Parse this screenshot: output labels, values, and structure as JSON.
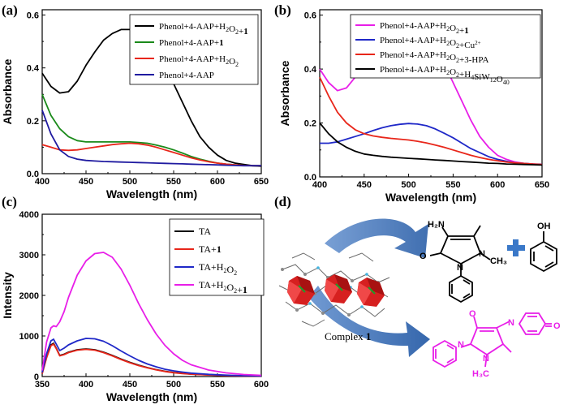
{
  "chart_data": [
    {
      "panel": "(a)",
      "type": "line",
      "xlabel": "Wavelength (nm)",
      "ylabel": "Absorbance",
      "xlim": [
        400,
        650
      ],
      "ylim": [
        0,
        0.62
      ],
      "xticks": [
        400,
        450,
        500,
        550,
        600,
        650
      ],
      "yticks": [
        0.0,
        0.2,
        0.4,
        0.6
      ],
      "ytick_labels": [
        "0.0",
        "0.2",
        "0.4",
        "0.6"
      ],
      "legend_position": "top-right",
      "series": [
        {
          "name": "Phenol+4-AAP+H2O2+1",
          "legend_parts": [
            "Phenol+4-AAP+H",
            "2",
            "O",
            "2",
            "+",
            "1"
          ],
          "color": "#000000",
          "x": [
            400,
            410,
            420,
            430,
            440,
            450,
            460,
            470,
            480,
            490,
            500,
            510,
            520,
            530,
            540,
            550,
            560,
            570,
            580,
            590,
            600,
            610,
            620,
            630,
            640,
            650
          ],
          "y": [
            0.38,
            0.33,
            0.305,
            0.31,
            0.35,
            0.41,
            0.46,
            0.505,
            0.53,
            0.545,
            0.545,
            0.535,
            0.505,
            0.46,
            0.4,
            0.34,
            0.27,
            0.2,
            0.14,
            0.1,
            0.07,
            0.05,
            0.04,
            0.035,
            0.03,
            0.028
          ]
        },
        {
          "name": "Phenol+4-AAP+1",
          "legend_parts": [
            "Phenol+4-AAP+",
            "1"
          ],
          "color": "#1a8a1a",
          "x": [
            400,
            410,
            420,
            430,
            440,
            450,
            460,
            470,
            480,
            490,
            500,
            510,
            520,
            530,
            540,
            550,
            560,
            570,
            580,
            590,
            600,
            610,
            620,
            630,
            640,
            650
          ],
          "y": [
            0.3,
            0.22,
            0.17,
            0.14,
            0.125,
            0.12,
            0.12,
            0.12,
            0.12,
            0.12,
            0.12,
            0.118,
            0.115,
            0.108,
            0.1,
            0.09,
            0.078,
            0.065,
            0.055,
            0.047,
            0.04,
            0.036,
            0.033,
            0.031,
            0.03,
            0.03
          ]
        },
        {
          "name": "Phenol+4-AAP+H2O2",
          "legend_parts": [
            "Phenol+4-AAP+H",
            "2",
            "O",
            "2"
          ],
          "color": "#e8261a",
          "x": [
            400,
            410,
            420,
            430,
            440,
            450,
            460,
            470,
            480,
            490,
            500,
            510,
            520,
            530,
            540,
            550,
            560,
            570,
            580,
            590,
            600,
            610,
            620,
            630,
            640,
            650
          ],
          "y": [
            0.11,
            0.1,
            0.09,
            0.088,
            0.09,
            0.095,
            0.1,
            0.105,
            0.11,
            0.113,
            0.115,
            0.113,
            0.108,
            0.1,
            0.09,
            0.08,
            0.07,
            0.06,
            0.052,
            0.045,
            0.04,
            0.036,
            0.033,
            0.031,
            0.03,
            0.03
          ]
        },
        {
          "name": "Phenol+4-AAP",
          "legend_parts": [
            "Phenol+4-AAP"
          ],
          "color": "#1f1aa0",
          "x": [
            400,
            410,
            420,
            430,
            440,
            450,
            460,
            470,
            480,
            490,
            500,
            510,
            520,
            530,
            540,
            550,
            560,
            570,
            580,
            590,
            600,
            610,
            620,
            630,
            640,
            650
          ],
          "y": [
            0.24,
            0.15,
            0.09,
            0.065,
            0.055,
            0.05,
            0.048,
            0.046,
            0.045,
            0.044,
            0.043,
            0.042,
            0.041,
            0.04,
            0.039,
            0.038,
            0.037,
            0.036,
            0.035,
            0.034,
            0.033,
            0.032,
            0.031,
            0.03,
            0.03,
            0.03
          ]
        }
      ]
    },
    {
      "panel": "(b)",
      "type": "line",
      "xlabel": "Wavelength (nm)",
      "ylabel": "Absorbance",
      "xlim": [
        400,
        650
      ],
      "ylim": [
        0,
        0.62
      ],
      "xticks": [
        400,
        450,
        500,
        550,
        600,
        650
      ],
      "yticks": [
        0.0,
        0.2,
        0.4,
        0.6
      ],
      "ytick_labels": [
        "0.0",
        "0.2",
        "0.4",
        "0.6"
      ],
      "legend_position": "top-right",
      "series": [
        {
          "name": "Phenol+4-AAP+H2O2+1",
          "legend_parts": [
            "Phenol+4-AAP+H",
            "2",
            "O",
            "2",
            "+",
            "1"
          ],
          "color": "#e81ee8",
          "x": [
            400,
            410,
            420,
            430,
            440,
            450,
            460,
            470,
            480,
            490,
            500,
            510,
            520,
            530,
            540,
            550,
            560,
            570,
            580,
            590,
            600,
            610,
            620,
            630,
            640,
            650
          ],
          "y": [
            0.4,
            0.35,
            0.32,
            0.33,
            0.37,
            0.42,
            0.47,
            0.51,
            0.54,
            0.56,
            0.565,
            0.56,
            0.53,
            0.48,
            0.42,
            0.35,
            0.28,
            0.21,
            0.15,
            0.11,
            0.08,
            0.065,
            0.055,
            0.05,
            0.048,
            0.045
          ]
        },
        {
          "name": "Phenol+4-AAP+H2O2+Cu2+",
          "legend_parts": [
            "Phenol+4-AAP+H",
            "2",
            "O",
            "2",
            "+Cu",
            "2+"
          ],
          "color": "#1f28c8",
          "x": [
            400,
            410,
            420,
            430,
            440,
            450,
            460,
            470,
            480,
            490,
            500,
            510,
            520,
            530,
            540,
            550,
            560,
            570,
            580,
            590,
            600,
            610,
            620,
            630,
            640,
            650
          ],
          "y": [
            0.125,
            0.125,
            0.13,
            0.14,
            0.15,
            0.16,
            0.172,
            0.182,
            0.19,
            0.195,
            0.198,
            0.196,
            0.19,
            0.178,
            0.162,
            0.145,
            0.125,
            0.105,
            0.09,
            0.075,
            0.065,
            0.058,
            0.052,
            0.05,
            0.048,
            0.047
          ]
        },
        {
          "name": "Phenol+4-AAP+H2O2+3-HPA",
          "legend_parts": [
            "Phenol+4-AAP+H",
            "2",
            "O",
            "2",
            "+3-HPA"
          ],
          "color": "#e8261a",
          "x": [
            400,
            410,
            420,
            430,
            440,
            450,
            460,
            470,
            480,
            490,
            500,
            510,
            520,
            530,
            540,
            550,
            560,
            570,
            580,
            590,
            600,
            610,
            620,
            630,
            640,
            650
          ],
          "y": [
            0.37,
            0.3,
            0.24,
            0.2,
            0.175,
            0.16,
            0.152,
            0.147,
            0.143,
            0.14,
            0.137,
            0.132,
            0.126,
            0.118,
            0.11,
            0.1,
            0.09,
            0.08,
            0.072,
            0.065,
            0.06,
            0.055,
            0.052,
            0.05,
            0.048,
            0.046
          ]
        },
        {
          "name": "Phenol+4-AAP+H2O2+H4SiW12O40",
          "legend_parts": [
            "Phenol+4-AAP+H",
            "2",
            "O",
            "2",
            "+H",
            "4",
            "SiW",
            "12",
            "O",
            "40"
          ],
          "color": "#000000",
          "x": [
            400,
            410,
            420,
            430,
            440,
            450,
            460,
            470,
            480,
            490,
            500,
            510,
            520,
            530,
            540,
            550,
            560,
            570,
            580,
            590,
            600,
            610,
            620,
            630,
            640,
            650
          ],
          "y": [
            0.2,
            0.16,
            0.13,
            0.11,
            0.095,
            0.085,
            0.08,
            0.076,
            0.073,
            0.071,
            0.069,
            0.067,
            0.065,
            0.063,
            0.061,
            0.059,
            0.057,
            0.055,
            0.053,
            0.051,
            0.05,
            0.048,
            0.047,
            0.046,
            0.045,
            0.044
          ]
        }
      ]
    },
    {
      "panel": "(c)",
      "type": "line",
      "xlabel": "Wavelength (nm)",
      "ylabel": "Intensity",
      "xlim": [
        350,
        600
      ],
      "ylim": [
        0,
        4000
      ],
      "xticks": [
        350,
        400,
        450,
        500,
        550,
        600
      ],
      "yticks": [
        0,
        1000,
        2000,
        3000,
        4000
      ],
      "ytick_labels": [
        "0",
        "1000",
        "2000",
        "3000",
        "4000"
      ],
      "legend_position": "top-right",
      "series": [
        {
          "name": "TA",
          "legend_parts": [
            "TA"
          ],
          "color": "#000000",
          "x": [
            350,
            355,
            360,
            363,
            366,
            370,
            375,
            380,
            390,
            400,
            410,
            420,
            430,
            440,
            450,
            460,
            470,
            480,
            490,
            500,
            510,
            520,
            540,
            560,
            580,
            600
          ],
          "y": [
            80,
            480,
            780,
            820,
            700,
            520,
            550,
            600,
            660,
            680,
            660,
            600,
            520,
            430,
            350,
            280,
            220,
            170,
            130,
            100,
            80,
            60,
            40,
            25,
            15,
            10
          ]
        },
        {
          "name": "TA+1",
          "legend_parts": [
            "TA+",
            "1"
          ],
          "color": "#e8261a",
          "x": [
            350,
            355,
            360,
            363,
            366,
            370,
            375,
            380,
            390,
            400,
            410,
            420,
            430,
            440,
            450,
            460,
            470,
            480,
            490,
            500,
            510,
            520,
            540,
            560,
            580,
            600
          ],
          "y": [
            70,
            460,
            760,
            800,
            690,
            510,
            540,
            590,
            650,
            670,
            650,
            590,
            510,
            420,
            340,
            270,
            215,
            165,
            125,
            95,
            75,
            58,
            38,
            24,
            14,
            9
          ]
        },
        {
          "name": "TA+H2O2",
          "legend_parts": [
            "TA+H",
            "2",
            "O",
            "2"
          ],
          "color": "#1f28c8",
          "x": [
            350,
            355,
            360,
            363,
            366,
            370,
            375,
            380,
            390,
            400,
            410,
            420,
            430,
            440,
            450,
            460,
            470,
            480,
            490,
            500,
            510,
            520,
            540,
            560,
            580,
            600
          ],
          "y": [
            100,
            560,
            880,
            920,
            800,
            640,
            700,
            780,
            880,
            940,
            930,
            870,
            760,
            630,
            510,
            400,
            310,
            240,
            180,
            140,
            110,
            85,
            55,
            35,
            20,
            12
          ]
        },
        {
          "name": "TA+H2O2+1",
          "legend_parts": [
            "TA+H",
            "2",
            "O",
            "2",
            "+",
            "1"
          ],
          "color": "#e81ee8",
          "x": [
            350,
            355,
            360,
            363,
            366,
            370,
            375,
            380,
            390,
            400,
            410,
            420,
            430,
            440,
            450,
            460,
            470,
            480,
            490,
            500,
            510,
            520,
            540,
            560,
            580,
            600
          ],
          "y": [
            150,
            850,
            1200,
            1250,
            1230,
            1350,
            1600,
            1950,
            2500,
            2850,
            3030,
            3060,
            2940,
            2650,
            2250,
            1800,
            1400,
            1050,
            770,
            560,
            400,
            290,
            160,
            90,
            50,
            30
          ]
        }
      ]
    }
  ],
  "labels": {
    "panel_a": "(a)",
    "panel_b": "(b)",
    "panel_c": "(c)",
    "panel_d": "(d)"
  },
  "scheme": {
    "h2o2_parts": [
      "H",
      "2",
      "O",
      "2"
    ],
    "complex_text": "Complex ",
    "complex_bold": "1",
    "oh_text": "•OH",
    "reactant_a_labels": {
      "h2n": "H₂N",
      "o": "O",
      "n1": "N",
      "n2": "N",
      "ch3": "CH₃"
    },
    "reactant_b_labels": {
      "oh": "OH"
    },
    "product_labels": {
      "o": "O",
      "n_bridge": "N",
      "o_quinone": "O",
      "n1": "N",
      "n2": "N",
      "h3c": "H₃C"
    },
    "colors": {
      "plus": "#3a78c8",
      "product": "#e81ee8",
      "arrow": "#2e65b2",
      "poly": "#d62020"
    }
  }
}
